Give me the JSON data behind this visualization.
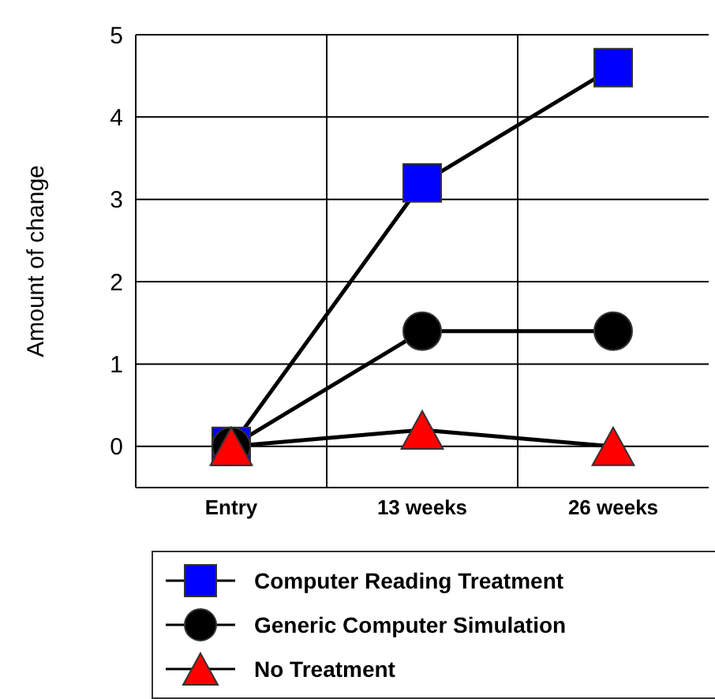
{
  "chart_data": {
    "type": "line",
    "ylabel": "Amount of change",
    "categories": [
      "Entry",
      "13 weeks",
      "26 weeks"
    ],
    "series": [
      {
        "name": "Computer Reading Treatment",
        "color": "#0000ff",
        "marker": "square",
        "values": [
          0,
          3.2,
          4.6
        ]
      },
      {
        "name": "Generic Computer Simulation",
        "color": "#000000",
        "marker": "circle",
        "values": [
          0,
          1.4,
          1.4
        ]
      },
      {
        "name": "No Treatment",
        "color": "#ff0000",
        "marker": "triangle",
        "values": [
          0,
          0.2,
          0
        ]
      }
    ],
    "ylim": [
      -0.5,
      5
    ],
    "yticks": [
      0,
      1,
      2,
      3,
      4,
      5
    ],
    "grid": true,
    "legend": "bottom"
  }
}
